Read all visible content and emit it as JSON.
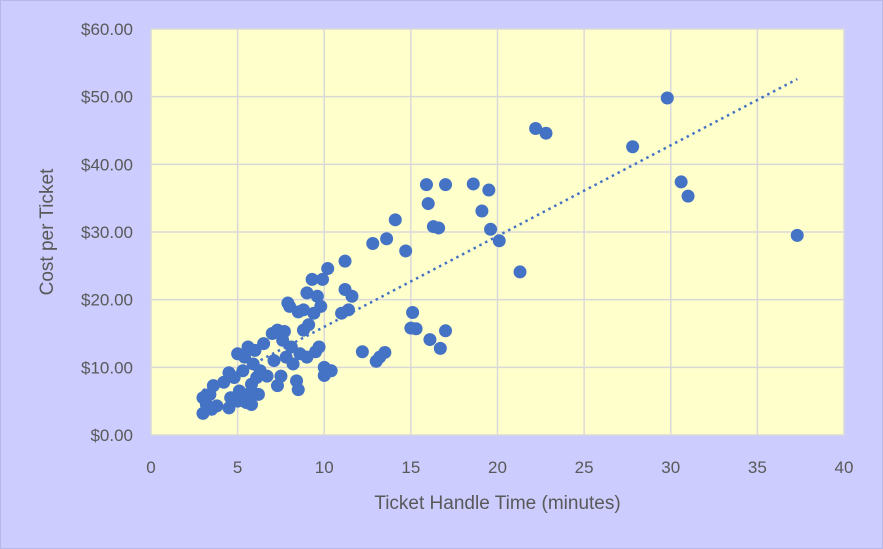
{
  "chart_data": {
    "type": "scatter",
    "title": "",
    "xlabel": "Ticket Handle Time (minutes)",
    "ylabel": "Cost per Ticket",
    "xlim": [
      0,
      40
    ],
    "ylim": [
      0,
      60
    ],
    "x_ticks": [
      0,
      5,
      10,
      15,
      20,
      25,
      30,
      35,
      40
    ],
    "y_ticks": [
      0,
      10,
      20,
      30,
      40,
      50,
      60
    ],
    "x_tick_labels": [
      "0",
      "5",
      "10",
      "15",
      "20",
      "25",
      "30",
      "35",
      "40"
    ],
    "y_tick_labels": [
      "$0.00",
      "$10.00",
      "$20.00",
      "$30.00",
      "$40.00",
      "$50.00",
      "$60.00"
    ],
    "grid": true,
    "legend": false,
    "colors": {
      "outer_background": "#ccccff",
      "plot_background": "#ffffcc",
      "grid": "#d9d9d9",
      "marker": "#4472c4",
      "trendline": "#4472c4",
      "text": "#595959"
    },
    "trendline": {
      "type": "linear",
      "style": "dotted",
      "from": [
        3.0,
        6.6
      ],
      "to": [
        37.3,
        52.6
      ]
    },
    "series": [
      {
        "points": [
          [
            3.0,
            5.5
          ],
          [
            3.0,
            3.2
          ],
          [
            3.2,
            4.5
          ],
          [
            3.4,
            6.0
          ],
          [
            3.5,
            3.8
          ],
          [
            3.6,
            7.3
          ],
          [
            3.2,
            5.9
          ],
          [
            3.8,
            4.3
          ],
          [
            4.2,
            7.8
          ],
          [
            4.5,
            9.2
          ],
          [
            4.5,
            4.0
          ],
          [
            4.6,
            5.5
          ],
          [
            4.8,
            8.5
          ],
          [
            5.0,
            12.0
          ],
          [
            5.0,
            5.0
          ],
          [
            5.1,
            6.5
          ],
          [
            5.3,
            9.5
          ],
          [
            5.4,
            11.5
          ],
          [
            5.5,
            4.8
          ],
          [
            5.6,
            13.0
          ],
          [
            5.6,
            6.0
          ],
          [
            5.8,
            7.5
          ],
          [
            5.8,
            4.5
          ],
          [
            5.9,
            10.5
          ],
          [
            6.0,
            12.5
          ],
          [
            6.1,
            8.5
          ],
          [
            6.2,
            6.0
          ],
          [
            6.3,
            9.5
          ],
          [
            6.5,
            13.5
          ],
          [
            6.7,
            8.7
          ],
          [
            7.0,
            15.0
          ],
          [
            7.1,
            11.0
          ],
          [
            7.3,
            15.5
          ],
          [
            7.3,
            7.3
          ],
          [
            7.5,
            8.7
          ],
          [
            7.6,
            14.0
          ],
          [
            7.7,
            15.3
          ],
          [
            7.8,
            11.5
          ],
          [
            7.9,
            19.5
          ],
          [
            8.0,
            19.0
          ],
          [
            8.1,
            13.0
          ],
          [
            8.2,
            10.5
          ],
          [
            8.4,
            8.0
          ],
          [
            8.5,
            6.7
          ],
          [
            8.5,
            18.2
          ],
          [
            8.6,
            12.0
          ],
          [
            8.8,
            18.5
          ],
          [
            8.8,
            15.5
          ],
          [
            9.0,
            21.0
          ],
          [
            9.0,
            11.5
          ],
          [
            9.1,
            16.3
          ],
          [
            9.3,
            23.0
          ],
          [
            9.4,
            18.0
          ],
          [
            9.5,
            12.3
          ],
          [
            9.6,
            20.5
          ],
          [
            9.7,
            13.0
          ],
          [
            9.8,
            19.0
          ],
          [
            9.9,
            23.0
          ],
          [
            10.0,
            10.0
          ],
          [
            10.0,
            8.8
          ],
          [
            10.2,
            24.6
          ],
          [
            10.4,
            9.5
          ],
          [
            11.0,
            18.0
          ],
          [
            11.2,
            21.5
          ],
          [
            11.2,
            25.7
          ],
          [
            11.4,
            18.5
          ],
          [
            11.6,
            20.5
          ],
          [
            12.2,
            12.3
          ],
          [
            12.8,
            28.3
          ],
          [
            13.0,
            10.9
          ],
          [
            13.2,
            11.5
          ],
          [
            13.5,
            12.2
          ],
          [
            13.6,
            29.0
          ],
          [
            14.1,
            31.8
          ],
          [
            14.7,
            27.2
          ],
          [
            15.0,
            15.8
          ],
          [
            15.1,
            18.1
          ],
          [
            15.3,
            15.7
          ],
          [
            15.9,
            37.0
          ],
          [
            16.0,
            34.2
          ],
          [
            16.1,
            14.1
          ],
          [
            16.3,
            30.8
          ],
          [
            16.6,
            30.6
          ],
          [
            16.7,
            12.8
          ],
          [
            17.0,
            37.0
          ],
          [
            17.0,
            15.4
          ],
          [
            18.6,
            37.1
          ],
          [
            19.1,
            33.1
          ],
          [
            19.5,
            36.2
          ],
          [
            19.6,
            30.4
          ],
          [
            20.1,
            28.7
          ],
          [
            21.3,
            24.1
          ],
          [
            22.2,
            45.3
          ],
          [
            22.8,
            44.6
          ],
          [
            27.8,
            42.6
          ],
          [
            29.8,
            49.8
          ],
          [
            30.6,
            37.4
          ],
          [
            31.0,
            35.3
          ],
          [
            37.3,
            29.5
          ]
        ]
      }
    ]
  }
}
